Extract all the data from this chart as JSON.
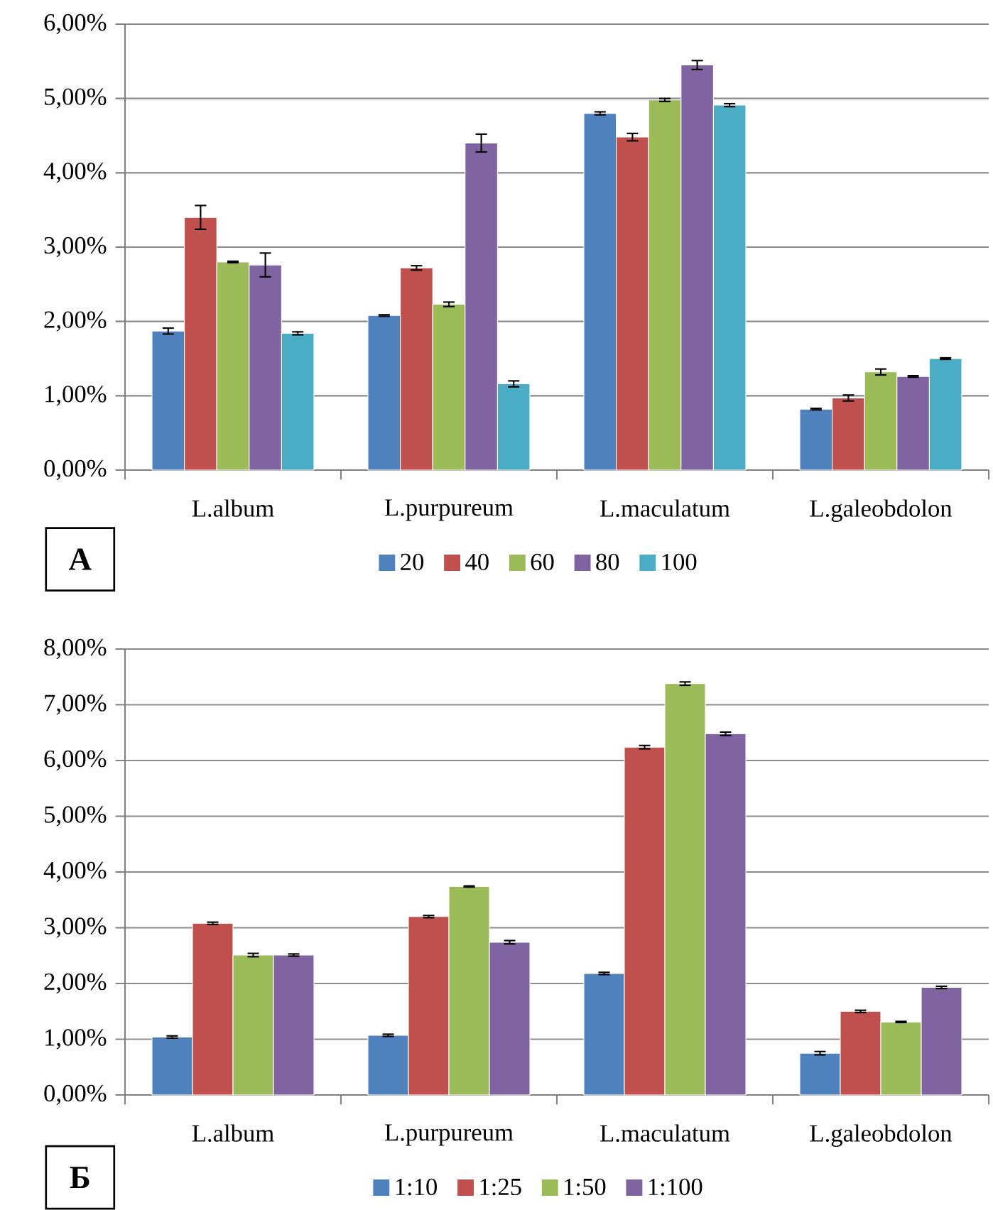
{
  "chart_data": [
    {
      "type": "bar",
      "categories": [
        "L.album",
        "L.purpureum",
        "L.maculatum",
        "L.galeobdolon"
      ],
      "series": [
        {
          "name": "20",
          "color": "#4f81bd",
          "values": [
            1.87,
            2.08,
            4.8,
            0.82
          ],
          "errors": [
            0.04,
            0.01,
            0.02,
            0.01
          ]
        },
        {
          "name": "40",
          "color": "#c0504d",
          "values": [
            3.4,
            2.72,
            4.48,
            0.97
          ],
          "errors": [
            0.16,
            0.03,
            0.05,
            0.04
          ]
        },
        {
          "name": "60",
          "color": "#9bbb59",
          "values": [
            2.8,
            2.23,
            4.98,
            1.32
          ],
          "errors": [
            0.01,
            0.03,
            0.02,
            0.04
          ]
        },
        {
          "name": "80",
          "color": "#8064a2",
          "values": [
            2.76,
            4.4,
            5.45,
            1.26
          ],
          "errors": [
            0.16,
            0.12,
            0.06,
            0.01
          ]
        },
        {
          "name": "100",
          "color": "#4bacc6",
          "values": [
            1.84,
            1.16,
            4.91,
            1.5
          ],
          "errors": [
            0.02,
            0.04,
            0.02,
            0.01
          ]
        }
      ],
      "ylim": [
        0,
        6
      ],
      "yticks": [
        {
          "value": 0,
          "label": "0,00%"
        },
        {
          "value": 1,
          "label": "1,00%"
        },
        {
          "value": 2,
          "label": "2,00%"
        },
        {
          "value": 3,
          "label": "3,00%"
        },
        {
          "value": 4,
          "label": "4,00%"
        },
        {
          "value": 5,
          "label": "5,00%"
        },
        {
          "value": 6,
          "label": "6,00%"
        }
      ],
      "grid": "y",
      "legend": "bottom",
      "annotations": [
        "A"
      ]
    },
    {
      "type": "bar",
      "categories": [
        "L.album",
        "L.purpureum",
        "L.maculatum",
        "L.galeobdolon"
      ],
      "series": [
        {
          "name": "1:10",
          "color": "#4f81bd",
          "values": [
            1.04,
            1.07,
            2.18,
            0.75
          ],
          "errors": [
            0.02,
            0.02,
            0.02,
            0.03
          ]
        },
        {
          "name": "1:25",
          "color": "#c0504d",
          "values": [
            3.08,
            3.2,
            6.24,
            1.5
          ],
          "errors": [
            0.02,
            0.02,
            0.03,
            0.02
          ]
        },
        {
          "name": "1:50",
          "color": "#9bbb59",
          "values": [
            2.51,
            3.74,
            7.38,
            1.31
          ],
          "errors": [
            0.03,
            0.01,
            0.03,
            0.01
          ]
        },
        {
          "name": "1:100",
          "color": "#8064a2",
          "values": [
            2.51,
            2.74,
            6.48,
            1.93
          ],
          "errors": [
            0.02,
            0.03,
            0.03,
            0.02
          ]
        }
      ],
      "ylim": [
        0,
        8
      ],
      "yticks": [
        {
          "value": 0,
          "label": "0,00%"
        },
        {
          "value": 1,
          "label": "1,00%"
        },
        {
          "value": 2,
          "label": "2,00%"
        },
        {
          "value": 3,
          "label": "3,00%"
        },
        {
          "value": 4,
          "label": "4,00%"
        },
        {
          "value": 5,
          "label": "5,00%"
        },
        {
          "value": 6,
          "label": "6,00%"
        },
        {
          "value": 7,
          "label": "7,00%"
        },
        {
          "value": 8,
          "label": "8,00%"
        }
      ],
      "grid": "y",
      "legend": "bottom",
      "annotations": [
        "Б"
      ]
    }
  ]
}
